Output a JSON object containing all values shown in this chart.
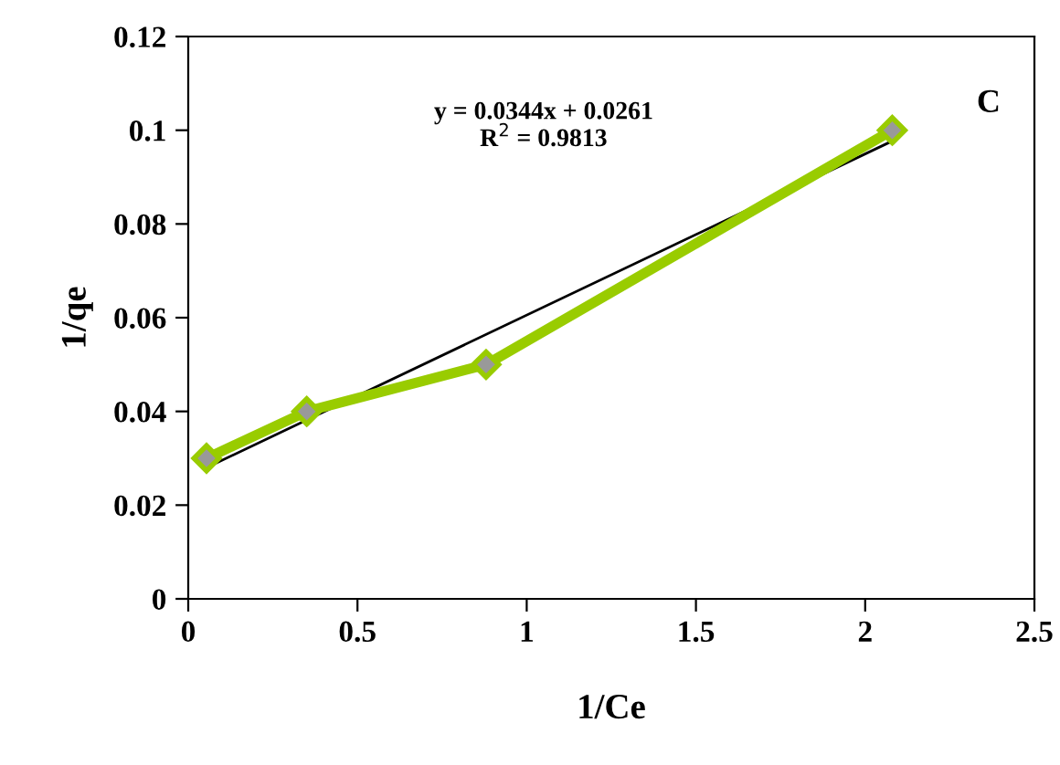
{
  "chart_data": {
    "type": "line",
    "xlabel": "1/Ce",
    "ylabel": "1/qe",
    "series": [
      {
        "x": [
          0.054,
          0.35,
          0.88,
          2.08
        ],
        "values": [
          0.03,
          0.04,
          0.05,
          0.1
        ],
        "color": "#99cc00",
        "marker": "diamond"
      },
      {
        "x": [
          0.054,
          2.08
        ],
        "values": [
          0.028,
          0.0977
        ],
        "color": "#000000",
        "marker": "none"
      }
    ],
    "xlim": [
      0,
      2.5
    ],
    "xticks": [
      0,
      0.5,
      1,
      1.5,
      2,
      2.5
    ],
    "ylim": [
      0,
      0.12
    ],
    "yticks": [
      0,
      0.02,
      0.04,
      0.06,
      0.08,
      0.1,
      0.12
    ],
    "grid": false,
    "legend": false,
    "annotations": [
      "y = 0.0344x + 0.0261\nR$^{2}$ = 0.9813",
      "C"
    ]
  }
}
